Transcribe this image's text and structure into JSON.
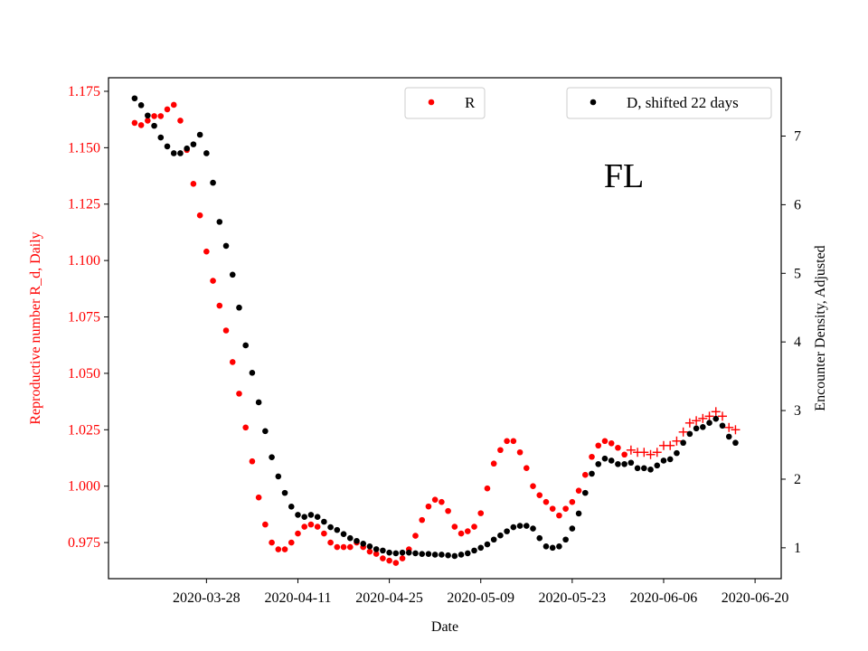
{
  "chart_data": {
    "type": "scatter",
    "title": "",
    "annotation": "FL",
    "xlabel": "Date",
    "ylabel_left": "Reproductive number R_d, Daily",
    "ylabel_right": "Encounter Density, Adjusted",
    "start_date": "2020-03-17",
    "x_tick_labels": [
      "2020-03-28",
      "2020-04-11",
      "2020-04-25",
      "2020-05-09",
      "2020-05-23",
      "2020-06-06",
      "2020-06-20"
    ],
    "y_left_ticks": [
      "0.975",
      "1.000",
      "1.025",
      "1.050",
      "1.075",
      "1.100",
      "1.125",
      "1.150",
      "1.175"
    ],
    "y_right_ticks": [
      "1",
      "2",
      "3",
      "4",
      "5",
      "6",
      "7"
    ],
    "xlim": [
      "2020-03-13",
      "2020-06-24"
    ],
    "ylim_left": [
      0.959,
      1.181
    ],
    "ylim_right": [
      0.55,
      7.85
    ],
    "colors": {
      "R": "#ff0000",
      "D": "#000000",
      "left_axis": "#ff0000"
    },
    "grid": false,
    "legends": [
      {
        "label": "R",
        "placement": "top-center",
        "marker": "dot",
        "color": "#ff0000"
      },
      {
        "label": "D, shifted 22 days",
        "placement": "top-right",
        "marker": "dot",
        "color": "#000000"
      }
    ],
    "series": [
      {
        "name": "R",
        "axis": "left",
        "marker": "dot",
        "color": "#ff0000",
        "points": [
          [
            "2020-03-17",
            1.161
          ],
          [
            "2020-03-18",
            1.16
          ],
          [
            "2020-03-19",
            1.162
          ],
          [
            "2020-03-20",
            1.164
          ],
          [
            "2020-03-21",
            1.164
          ],
          [
            "2020-03-22",
            1.167
          ],
          [
            "2020-03-23",
            1.169
          ],
          [
            "2020-03-24",
            1.162
          ],
          [
            "2020-03-25",
            1.149
          ],
          [
            "2020-03-26",
            1.134
          ],
          [
            "2020-03-27",
            1.12
          ],
          [
            "2020-03-28",
            1.104
          ],
          [
            "2020-03-29",
            1.091
          ],
          [
            "2020-03-30",
            1.08
          ],
          [
            "2020-03-31",
            1.069
          ],
          [
            "2020-04-01",
            1.055
          ],
          [
            "2020-04-02",
            1.041
          ],
          [
            "2020-04-03",
            1.026
          ],
          [
            "2020-04-04",
            1.011
          ],
          [
            "2020-04-05",
            0.995
          ],
          [
            "2020-04-06",
            0.983
          ],
          [
            "2020-04-07",
            0.975
          ],
          [
            "2020-04-08",
            0.972
          ],
          [
            "2020-04-09",
            0.972
          ],
          [
            "2020-04-10",
            0.975
          ],
          [
            "2020-04-11",
            0.979
          ],
          [
            "2020-04-12",
            0.982
          ],
          [
            "2020-04-13",
            0.983
          ],
          [
            "2020-04-14",
            0.982
          ],
          [
            "2020-04-15",
            0.979
          ],
          [
            "2020-04-16",
            0.975
          ],
          [
            "2020-04-17",
            0.973
          ],
          [
            "2020-04-18",
            0.973
          ],
          [
            "2020-04-19",
            0.973
          ],
          [
            "2020-04-20",
            0.975
          ],
          [
            "2020-04-21",
            0.973
          ],
          [
            "2020-04-22",
            0.971
          ],
          [
            "2020-04-23",
            0.97
          ],
          [
            "2020-04-24",
            0.968
          ],
          [
            "2020-04-25",
            0.967
          ],
          [
            "2020-04-26",
            0.966
          ],
          [
            "2020-04-27",
            0.968
          ],
          [
            "2020-04-28",
            0.972
          ],
          [
            "2020-04-29",
            0.978
          ],
          [
            "2020-04-30",
            0.985
          ],
          [
            "2020-05-01",
            0.991
          ],
          [
            "2020-05-02",
            0.994
          ],
          [
            "2020-05-03",
            0.993
          ],
          [
            "2020-05-04",
            0.989
          ],
          [
            "2020-05-05",
            0.982
          ],
          [
            "2020-05-06",
            0.979
          ],
          [
            "2020-05-07",
            0.98
          ],
          [
            "2020-05-08",
            0.982
          ],
          [
            "2020-05-09",
            0.988
          ],
          [
            "2020-05-10",
            0.999
          ],
          [
            "2020-05-11",
            1.01
          ],
          [
            "2020-05-12",
            1.016
          ],
          [
            "2020-05-13",
            1.02
          ],
          [
            "2020-05-14",
            1.02
          ],
          [
            "2020-05-15",
            1.015
          ],
          [
            "2020-05-16",
            1.008
          ],
          [
            "2020-05-17",
            1.0
          ],
          [
            "2020-05-18",
            0.996
          ],
          [
            "2020-05-19",
            0.993
          ],
          [
            "2020-05-20",
            0.99
          ],
          [
            "2020-05-21",
            0.987
          ],
          [
            "2020-05-22",
            0.99
          ],
          [
            "2020-05-23",
            0.993
          ],
          [
            "2020-05-24",
            0.998
          ],
          [
            "2020-05-25",
            1.005
          ],
          [
            "2020-05-26",
            1.013
          ],
          [
            "2020-05-27",
            1.018
          ],
          [
            "2020-05-28",
            1.02
          ],
          [
            "2020-05-29",
            1.019
          ],
          [
            "2020-05-30",
            1.017
          ],
          [
            "2020-05-31",
            1.014
          ]
        ]
      },
      {
        "name": "R",
        "axis": "left",
        "marker": "plus",
        "color": "#ff0000",
        "points": [
          [
            "2020-06-01",
            1.016
          ],
          [
            "2020-06-02",
            1.015
          ],
          [
            "2020-06-03",
            1.015
          ],
          [
            "2020-06-04",
            1.014
          ],
          [
            "2020-06-05",
            1.015
          ],
          [
            "2020-06-06",
            1.018
          ],
          [
            "2020-06-07",
            1.018
          ],
          [
            "2020-06-08",
            1.02
          ],
          [
            "2020-06-09",
            1.024
          ],
          [
            "2020-06-10",
            1.028
          ],
          [
            "2020-06-11",
            1.029
          ],
          [
            "2020-06-12",
            1.03
          ],
          [
            "2020-06-13",
            1.031
          ],
          [
            "2020-06-14",
            1.033
          ],
          [
            "2020-06-15",
            1.031
          ],
          [
            "2020-06-16",
            1.026
          ],
          [
            "2020-06-17",
            1.025
          ]
        ]
      },
      {
        "name": "D, shifted 22 days",
        "axis": "right",
        "marker": "dot",
        "color": "#000000",
        "points": [
          [
            "2020-03-17",
            7.55
          ],
          [
            "2020-03-18",
            7.45
          ],
          [
            "2020-03-19",
            7.3
          ],
          [
            "2020-03-20",
            7.15
          ],
          [
            "2020-03-21",
            6.98
          ],
          [
            "2020-03-22",
            6.85
          ],
          [
            "2020-03-23",
            6.75
          ],
          [
            "2020-03-24",
            6.75
          ],
          [
            "2020-03-25",
            6.82
          ],
          [
            "2020-03-26",
            6.88
          ],
          [
            "2020-03-27",
            7.02
          ],
          [
            "2020-03-28",
            6.75
          ],
          [
            "2020-03-29",
            6.32
          ],
          [
            "2020-03-30",
            5.75
          ],
          [
            "2020-03-31",
            5.4
          ],
          [
            "2020-04-01",
            4.98
          ],
          [
            "2020-04-02",
            4.5
          ],
          [
            "2020-04-03",
            3.95
          ],
          [
            "2020-04-04",
            3.55
          ],
          [
            "2020-04-05",
            3.12
          ],
          [
            "2020-04-06",
            2.7
          ],
          [
            "2020-04-07",
            2.32
          ],
          [
            "2020-04-08",
            2.04
          ],
          [
            "2020-04-09",
            1.8
          ],
          [
            "2020-04-10",
            1.6
          ],
          [
            "2020-04-11",
            1.48
          ],
          [
            "2020-04-12",
            1.45
          ],
          [
            "2020-04-13",
            1.48
          ],
          [
            "2020-04-14",
            1.45
          ],
          [
            "2020-04-15",
            1.38
          ],
          [
            "2020-04-16",
            1.3
          ],
          [
            "2020-04-17",
            1.26
          ],
          [
            "2020-04-18",
            1.2
          ],
          [
            "2020-04-19",
            1.14
          ],
          [
            "2020-04-20",
            1.1
          ],
          [
            "2020-04-21",
            1.06
          ],
          [
            "2020-04-22",
            1.02
          ],
          [
            "2020-04-23",
            0.98
          ],
          [
            "2020-04-24",
            0.96
          ],
          [
            "2020-04-25",
            0.93
          ],
          [
            "2020-04-26",
            0.92
          ],
          [
            "2020-04-27",
            0.93
          ],
          [
            "2020-04-28",
            0.93
          ],
          [
            "2020-04-29",
            0.92
          ],
          [
            "2020-04-30",
            0.91
          ],
          [
            "2020-05-01",
            0.91
          ],
          [
            "2020-05-02",
            0.9
          ],
          [
            "2020-05-03",
            0.9
          ],
          [
            "2020-05-04",
            0.89
          ],
          [
            "2020-05-05",
            0.88
          ],
          [
            "2020-05-06",
            0.9
          ],
          [
            "2020-05-07",
            0.92
          ],
          [
            "2020-05-08",
            0.96
          ],
          [
            "2020-05-09",
            1.0
          ],
          [
            "2020-05-10",
            1.05
          ],
          [
            "2020-05-11",
            1.12
          ],
          [
            "2020-05-12",
            1.18
          ],
          [
            "2020-05-13",
            1.24
          ],
          [
            "2020-05-14",
            1.3
          ],
          [
            "2020-05-15",
            1.32
          ],
          [
            "2020-05-16",
            1.32
          ],
          [
            "2020-05-17",
            1.28
          ],
          [
            "2020-05-18",
            1.14
          ],
          [
            "2020-05-19",
            1.02
          ],
          [
            "2020-05-20",
            1.0
          ],
          [
            "2020-05-21",
            1.02
          ],
          [
            "2020-05-22",
            1.12
          ],
          [
            "2020-05-23",
            1.28
          ],
          [
            "2020-05-24",
            1.5
          ],
          [
            "2020-05-25",
            1.8
          ],
          [
            "2020-05-26",
            2.08
          ],
          [
            "2020-05-27",
            2.22
          ],
          [
            "2020-05-28",
            2.3
          ],
          [
            "2020-05-29",
            2.27
          ],
          [
            "2020-05-30",
            2.22
          ],
          [
            "2020-05-31",
            2.22
          ],
          [
            "2020-06-01",
            2.24
          ],
          [
            "2020-06-02",
            2.16
          ],
          [
            "2020-06-03",
            2.16
          ],
          [
            "2020-06-04",
            2.14
          ],
          [
            "2020-06-05",
            2.2
          ],
          [
            "2020-06-06",
            2.27
          ],
          [
            "2020-06-07",
            2.29
          ],
          [
            "2020-06-08",
            2.38
          ],
          [
            "2020-06-09",
            2.53
          ],
          [
            "2020-06-10",
            2.66
          ],
          [
            "2020-06-11",
            2.74
          ],
          [
            "2020-06-12",
            2.76
          ],
          [
            "2020-06-13",
            2.82
          ],
          [
            "2020-06-14",
            2.88
          ],
          [
            "2020-06-15",
            2.78
          ],
          [
            "2020-06-16",
            2.62
          ],
          [
            "2020-06-17",
            2.53
          ]
        ]
      }
    ]
  }
}
